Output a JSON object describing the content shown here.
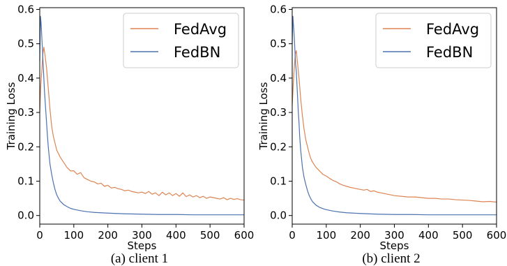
{
  "chart_data": [
    {
      "type": "line",
      "caption": "(a) client 1",
      "xlabel": "Steps",
      "ylabel": "Training Loss",
      "xlim": [
        0,
        600
      ],
      "ylim": [
        -0.025,
        0.605
      ],
      "xticks": [
        0,
        100,
        200,
        300,
        400,
        500,
        600
      ],
      "yticks": [
        0.0,
        0.1,
        0.2,
        0.3,
        0.4,
        0.5,
        0.6
      ],
      "grid": false,
      "legend": "top-right",
      "series": [
        {
          "name": "FedAvg",
          "color": "#dd8452",
          "x": [
            0,
            3,
            6,
            9,
            12,
            15,
            20,
            25,
            30,
            35,
            40,
            45,
            50,
            55,
            60,
            70,
            80,
            90,
            100,
            110,
            120,
            130,
            140,
            150,
            160,
            170,
            180,
            190,
            200,
            210,
            220,
            230,
            240,
            250,
            260,
            270,
            280,
            290,
            300,
            310,
            320,
            330,
            340,
            350,
            360,
            370,
            380,
            390,
            400,
            410,
            420,
            430,
            440,
            450,
            460,
            470,
            480,
            490,
            500,
            510,
            520,
            530,
            540,
            550,
            560,
            570,
            580,
            590,
            600
          ],
          "y": [
            0.3,
            0.38,
            0.42,
            0.47,
            0.49,
            0.47,
            0.43,
            0.37,
            0.31,
            0.26,
            0.23,
            0.21,
            0.19,
            0.18,
            0.17,
            0.155,
            0.14,
            0.13,
            0.13,
            0.12,
            0.125,
            0.11,
            0.105,
            0.1,
            0.098,
            0.092,
            0.094,
            0.085,
            0.088,
            0.08,
            0.082,
            0.078,
            0.076,
            0.072,
            0.074,
            0.07,
            0.068,
            0.066,
            0.068,
            0.064,
            0.07,
            0.062,
            0.066,
            0.058,
            0.068,
            0.06,
            0.066,
            0.058,
            0.064,
            0.056,
            0.066,
            0.055,
            0.06,
            0.054,
            0.058,
            0.052,
            0.056,
            0.05,
            0.054,
            0.052,
            0.05,
            0.048,
            0.052,
            0.046,
            0.05,
            0.047,
            0.049,
            0.046,
            0.045
          ]
        },
        {
          "name": "FedBN",
          "color": "#4c72b0",
          "x": [
            0,
            2,
            4,
            6,
            8,
            10,
            12,
            14,
            16,
            18,
            20,
            22,
            25,
            28,
            30,
            35,
            40,
            45,
            50,
            55,
            60,
            70,
            80,
            90,
            100,
            120,
            140,
            160,
            180,
            200,
            250,
            300,
            350,
            400,
            450,
            500,
            550,
            600
          ],
          "y": [
            0.45,
            0.58,
            0.56,
            0.52,
            0.48,
            0.44,
            0.4,
            0.36,
            0.33,
            0.3,
            0.27,
            0.24,
            0.2,
            0.17,
            0.15,
            0.12,
            0.095,
            0.075,
            0.06,
            0.05,
            0.042,
            0.032,
            0.026,
            0.021,
            0.018,
            0.014,
            0.011,
            0.009,
            0.008,
            0.007,
            0.005,
            0.004,
            0.003,
            0.003,
            0.002,
            0.002,
            0.002,
            0.002
          ]
        }
      ]
    },
    {
      "type": "line",
      "caption": "(b) client 2",
      "xlabel": "Steps",
      "ylabel": "Training Loss",
      "xlim": [
        0,
        600
      ],
      "ylim": [
        -0.025,
        0.605
      ],
      "xticks": [
        0,
        100,
        200,
        300,
        400,
        500,
        600
      ],
      "yticks": [
        0.0,
        0.1,
        0.2,
        0.3,
        0.4,
        0.5,
        0.6
      ],
      "grid": false,
      "legend": "top-right",
      "series": [
        {
          "name": "FedAvg",
          "color": "#dd8452",
          "x": [
            0,
            3,
            6,
            9,
            12,
            15,
            20,
            25,
            30,
            35,
            40,
            45,
            50,
            55,
            60,
            70,
            80,
            90,
            100,
            110,
            120,
            130,
            140,
            150,
            160,
            170,
            180,
            190,
            200,
            210,
            220,
            230,
            240,
            250,
            260,
            270,
            280,
            290,
            300,
            320,
            340,
            360,
            380,
            400,
            420,
            440,
            460,
            480,
            500,
            520,
            540,
            560,
            580,
            600
          ],
          "y": [
            0.32,
            0.38,
            0.43,
            0.47,
            0.48,
            0.45,
            0.4,
            0.34,
            0.29,
            0.25,
            0.22,
            0.2,
            0.18,
            0.165,
            0.155,
            0.14,
            0.13,
            0.12,
            0.115,
            0.108,
            0.102,
            0.098,
            0.092,
            0.088,
            0.085,
            0.082,
            0.08,
            0.078,
            0.076,
            0.074,
            0.076,
            0.07,
            0.072,
            0.068,
            0.066,
            0.064,
            0.062,
            0.06,
            0.058,
            0.056,
            0.054,
            0.054,
            0.052,
            0.05,
            0.05,
            0.048,
            0.048,
            0.046,
            0.045,
            0.044,
            0.042,
            0.04,
            0.041,
            0.039
          ]
        },
        {
          "name": "FedBN",
          "color": "#4c72b0",
          "x": [
            0,
            2,
            4,
            6,
            8,
            10,
            12,
            14,
            16,
            18,
            20,
            22,
            25,
            28,
            30,
            35,
            40,
            45,
            50,
            55,
            60,
            70,
            80,
            90,
            100,
            120,
            140,
            160,
            180,
            200,
            250,
            300,
            350,
            400,
            450,
            500,
            550,
            600
          ],
          "y": [
            0.5,
            0.58,
            0.55,
            0.52,
            0.48,
            0.44,
            0.42,
            0.38,
            0.34,
            0.3,
            0.27,
            0.23,
            0.19,
            0.16,
            0.14,
            0.11,
            0.09,
            0.072,
            0.058,
            0.048,
            0.04,
            0.03,
            0.024,
            0.02,
            0.017,
            0.013,
            0.01,
            0.008,
            0.007,
            0.006,
            0.004,
            0.003,
            0.003,
            0.002,
            0.002,
            0.002,
            0.002,
            0.002
          ]
        }
      ]
    }
  ]
}
